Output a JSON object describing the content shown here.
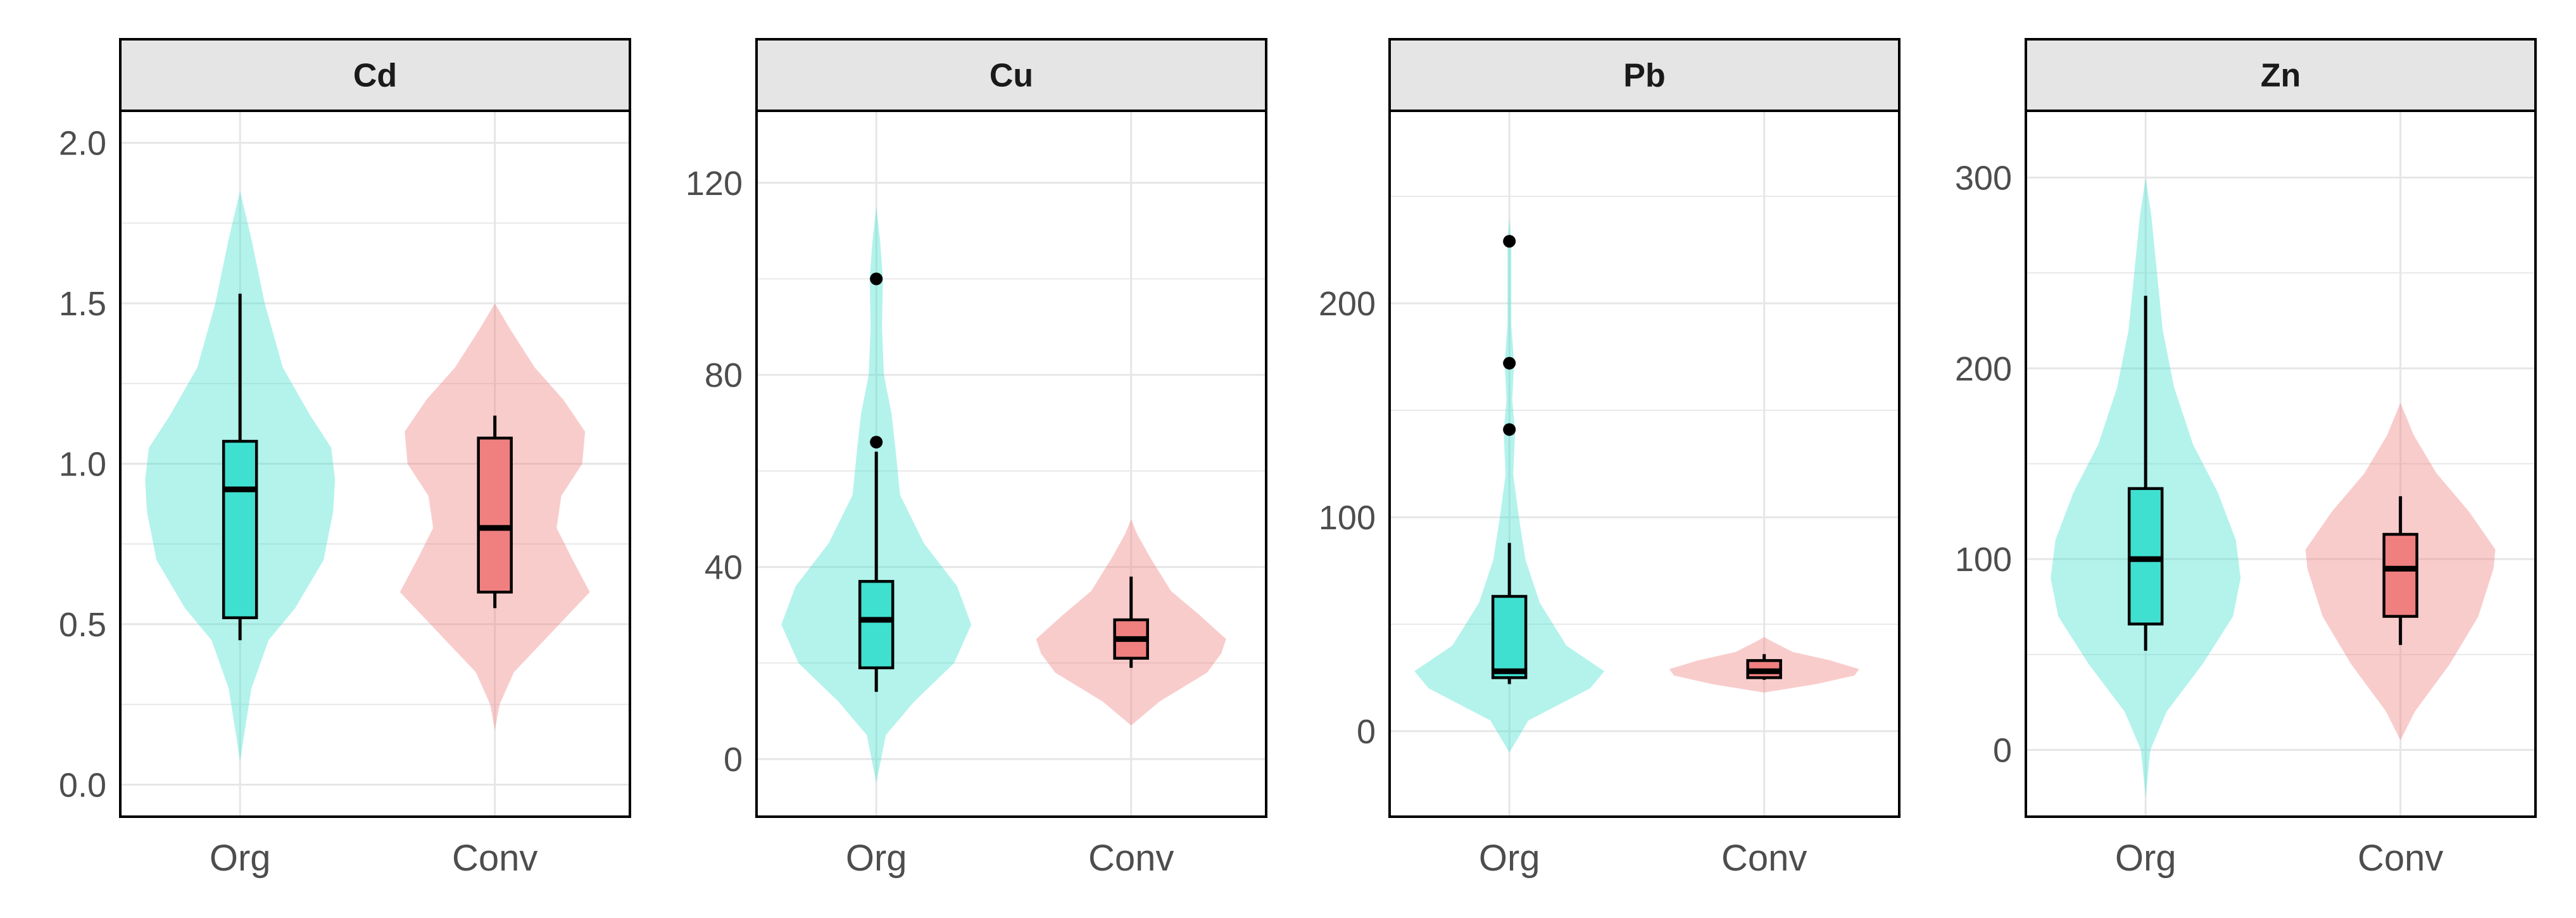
{
  "chart_data": {
    "type": "violin",
    "categories": [
      "Org",
      "Conv"
    ],
    "colors": {
      "Org_fill": "#40E0D0",
      "Conv_fill": "#F08080",
      "violin_alpha": 0.4,
      "box_line": "#000000",
      "strip_bg": "#e5e5e5",
      "grid": "#e6e6e6"
    },
    "grid": true,
    "legend": "none",
    "panels": [
      {
        "title": "Cd",
        "ylim": [
          -0.1,
          2.1
        ],
        "yticks": [
          0.0,
          0.5,
          1.0,
          1.5,
          2.0
        ],
        "tick_labels": [
          "0.0",
          "0.5",
          "1.0",
          "1.5",
          "2.0"
        ],
        "series": [
          {
            "name": "Org",
            "box": {
              "min": 0.45,
              "q1": 0.52,
              "median": 0.92,
              "q3": 1.07,
              "max": 1.53
            },
            "outliers": [],
            "violin": [
              [
                0.07,
                0.0
              ],
              [
                0.15,
                0.04
              ],
              [
                0.3,
                0.12
              ],
              [
                0.45,
                0.3
              ],
              [
                0.55,
                0.58
              ],
              [
                0.7,
                0.88
              ],
              [
                0.85,
                0.98
              ],
              [
                0.95,
                1.0
              ],
              [
                1.05,
                0.96
              ],
              [
                1.15,
                0.74
              ],
              [
                1.3,
                0.45
              ],
              [
                1.5,
                0.26
              ],
              [
                1.7,
                0.12
              ],
              [
                1.85,
                0.0
              ]
            ]
          },
          {
            "name": "Conv",
            "box": {
              "min": 0.55,
              "q1": 0.6,
              "median": 0.8,
              "q3": 1.08,
              "max": 1.15
            },
            "outliers": [],
            "violin": [
              [
                0.17,
                0.0
              ],
              [
                0.25,
                0.05
              ],
              [
                0.35,
                0.2
              ],
              [
                0.5,
                0.68
              ],
              [
                0.6,
                1.0
              ],
              [
                0.7,
                0.82
              ],
              [
                0.8,
                0.65
              ],
              [
                0.9,
                0.7
              ],
              [
                1.0,
                0.92
              ],
              [
                1.1,
                0.95
              ],
              [
                1.2,
                0.72
              ],
              [
                1.3,
                0.42
              ],
              [
                1.42,
                0.16
              ],
              [
                1.5,
                0.0
              ]
            ]
          }
        ]
      },
      {
        "title": "Cu",
        "ylim": [
          -12,
          135
        ],
        "yticks": [
          0,
          40,
          80,
          120
        ],
        "tick_labels": [
          "0",
          "40",
          "80",
          "120"
        ],
        "series": [
          {
            "name": "Org",
            "box": {
              "min": 14,
              "q1": 19,
              "median": 29,
              "q3": 37,
              "max": 64
            },
            "outliers": [
              66,
              100
            ],
            "violin": [
              [
                -5,
                0.0
              ],
              [
                5,
                0.1
              ],
              [
                12,
                0.4
              ],
              [
                20,
                0.82
              ],
              [
                28,
                1.0
              ],
              [
                36,
                0.85
              ],
              [
                45,
                0.5
              ],
              [
                55,
                0.25
              ],
              [
                65,
                0.2
              ],
              [
                72,
                0.16
              ],
              [
                80,
                0.08
              ],
              [
                90,
                0.06
              ],
              [
                100,
                0.07
              ],
              [
                108,
                0.04
              ],
              [
                115,
                0.0
              ]
            ]
          },
          {
            "name": "Conv",
            "box": {
              "min": 19,
              "q1": 21,
              "median": 25,
              "q3": 29,
              "max": 38
            },
            "outliers": [],
            "violin": [
              [
                7,
                0.0
              ],
              [
                12,
                0.3
              ],
              [
                18,
                0.8
              ],
              [
                22,
                0.95
              ],
              [
                25,
                1.0
              ],
              [
                30,
                0.72
              ],
              [
                35,
                0.42
              ],
              [
                42,
                0.2
              ],
              [
                47,
                0.06
              ],
              [
                50,
                0.0
              ]
            ]
          }
        ]
      },
      {
        "title": "Pb",
        "ylim": [
          -40,
          290
        ],
        "yticks": [
          0,
          100,
          200
        ],
        "tick_labels": [
          "0",
          "100",
          "200"
        ],
        "series": [
          {
            "name": "Org",
            "box": {
              "min": 22,
              "q1": 25,
              "median": 28,
              "q3": 63,
              "max": 88
            },
            "outliers": [
              141,
              172,
              229
            ],
            "violin": [
              [
                -10,
                0.0
              ],
              [
                5,
                0.2
              ],
              [
                20,
                0.85
              ],
              [
                28,
                1.0
              ],
              [
                40,
                0.6
              ],
              [
                60,
                0.32
              ],
              [
                80,
                0.17
              ],
              [
                100,
                0.1
              ],
              [
                120,
                0.04
              ],
              [
                140,
                0.06
              ],
              [
                155,
                0.03
              ],
              [
                172,
                0.05
              ],
              [
                190,
                0.02
              ],
              [
                229,
                0.02
              ],
              [
                240,
                0.0
              ]
            ]
          },
          {
            "name": "Conv",
            "box": {
              "min": 24,
              "q1": 25,
              "median": 28,
              "q3": 33,
              "max": 36
            },
            "outliers": [],
            "violin": [
              [
                18,
                0.0
              ],
              [
                22,
                0.55
              ],
              [
                26,
                0.95
              ],
              [
                29,
                1.0
              ],
              [
                33,
                0.7
              ],
              [
                37,
                0.3
              ],
              [
                42,
                0.08
              ],
              [
                44,
                0.0
              ]
            ]
          }
        ]
      },
      {
        "title": "Zn",
        "ylim": [
          -35,
          335
        ],
        "yticks": [
          0,
          100,
          200,
          300
        ],
        "tick_labels": [
          "0",
          "100",
          "200",
          "300"
        ],
        "series": [
          {
            "name": "Org",
            "box": {
              "min": 52,
              "q1": 66,
              "median": 100,
              "q3": 137,
              "max": 238
            },
            "outliers": [],
            "violin": [
              [
                -25,
                0.0
              ],
              [
                0,
                0.05
              ],
              [
                20,
                0.22
              ],
              [
                45,
                0.6
              ],
              [
                70,
                0.92
              ],
              [
                90,
                1.0
              ],
              [
                110,
                0.95
              ],
              [
                135,
                0.76
              ],
              [
                160,
                0.5
              ],
              [
                190,
                0.3
              ],
              [
                220,
                0.18
              ],
              [
                250,
                0.12
              ],
              [
                280,
                0.06
              ],
              [
                300,
                0.0
              ]
            ]
          },
          {
            "name": "Conv",
            "box": {
              "min": 55,
              "q1": 70,
              "median": 95,
              "q3": 113,
              "max": 133
            },
            "outliers": [],
            "violin": [
              [
                5,
                0.0
              ],
              [
                20,
                0.15
              ],
              [
                45,
                0.52
              ],
              [
                70,
                0.82
              ],
              [
                95,
                0.98
              ],
              [
                105,
                1.0
              ],
              [
                125,
                0.72
              ],
              [
                145,
                0.38
              ],
              [
                165,
                0.14
              ],
              [
                182,
                0.0
              ]
            ]
          }
        ]
      }
    ]
  }
}
